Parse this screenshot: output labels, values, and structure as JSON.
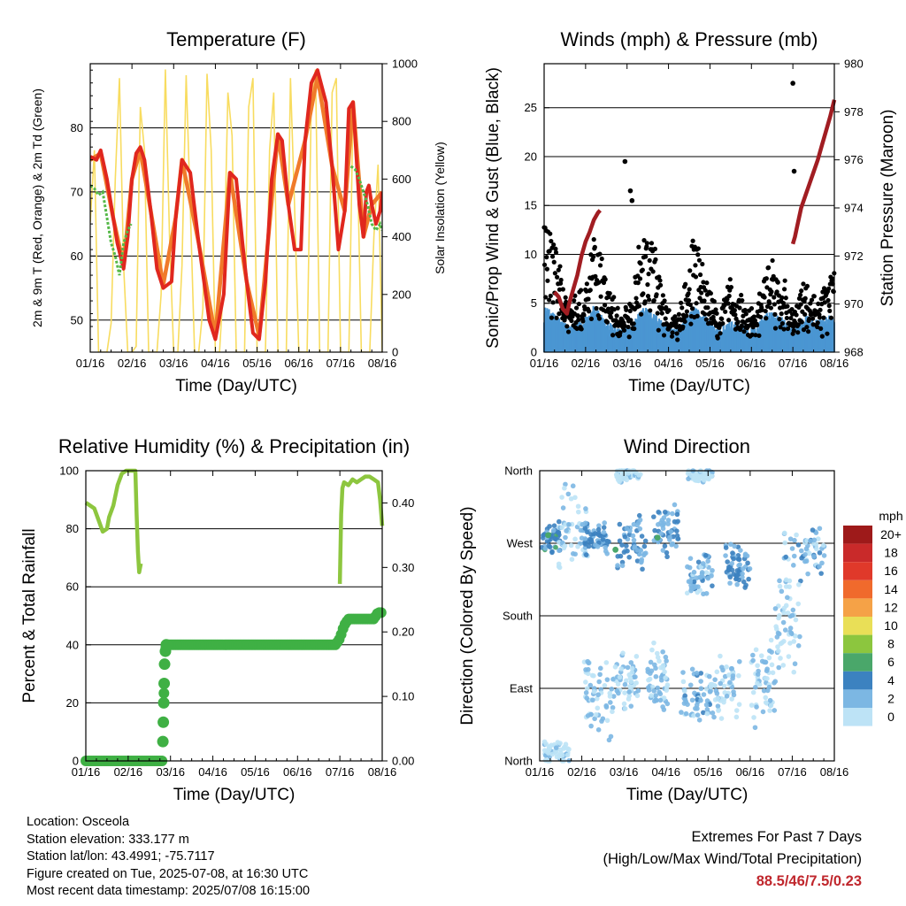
{
  "colors": {
    "temp_2m": "#e0271e",
    "temp_9m": "#f07a2a",
    "dewpoint": "#55b848",
    "solar": "#f8dc60",
    "wind": "#4b96d2",
    "gust": "#000000",
    "pressure": "#a11d22",
    "rh": "#8dc63f",
    "precip": "#3fb044",
    "extremes": "#c0272d"
  },
  "footer": {
    "location": "Location: Osceola",
    "elevation": "Station elevation: 333.177 m",
    "latlon": "Station lat/lon: 43.4991; -75.7117",
    "created": "Figure created on Tue, 2025-07-08, at 16:30 UTC",
    "recent": "Most recent data timestamp: 2025/07/08 16:15:00",
    "extremes_title": "Extremes For Past 7 Days",
    "extremes_subtitle": "(High/Low/Max Wind/Total Precipitation)",
    "extremes_value": "88.5/46/7.5/0.23"
  },
  "chart_data": [
    {
      "id": "temperature",
      "type": "line",
      "title": "Temperature (F)",
      "xlabel": "Time (Day/UTC)",
      "ylabel": "2m & 9m T (Red, Orange) & 2m Td (Green)",
      "y2label": "Solar Insolation (Yellow)",
      "x_ticks": [
        "01/16",
        "02/16",
        "03/16",
        "04/16",
        "05/16",
        "06/16",
        "07/16",
        "08/16"
      ],
      "xlim": [
        0,
        7
      ],
      "ylim": [
        45,
        90
      ],
      "y_ticks": [
        50,
        60,
        70,
        80
      ],
      "y2lim": [
        0,
        1000
      ],
      "y2_ticks": [
        0,
        200,
        400,
        600,
        800,
        1000
      ],
      "grid": true,
      "series": [
        {
          "role": "temp_2m",
          "x": [
            0,
            0.15,
            0.25,
            0.4,
            0.55,
            0.65,
            0.8,
            0.9,
            1.0,
            1.1,
            1.2,
            1.3,
            1.45,
            1.6,
            1.75,
            1.95,
            2.05,
            2.2,
            2.4,
            2.6,
            2.75,
            2.85,
            3.0,
            3.2,
            3.35,
            3.5,
            3.65,
            3.75,
            3.9,
            4.05,
            4.2,
            4.35,
            4.5,
            4.6,
            4.75,
            4.9,
            5.05,
            5.15,
            5.3,
            5.45,
            5.65,
            5.8,
            5.95,
            6.1,
            6.2,
            6.3,
            6.45,
            6.55,
            6.62,
            6.68,
            6.75,
            6.85,
            6.95,
            7.0
          ],
          "y": [
            75.5,
            75,
            76.5,
            72,
            66,
            62,
            58,
            63,
            72,
            76,
            77,
            75,
            67,
            58,
            55,
            56,
            66,
            75,
            73,
            62,
            55,
            50,
            47,
            54,
            73,
            72,
            62,
            56,
            48,
            47,
            56,
            72,
            79,
            78,
            68,
            61,
            61,
            78,
            87,
            89,
            84,
            74,
            61,
            67,
            83,
            84,
            68,
            63,
            70,
            71,
            68,
            65,
            67,
            70
          ]
        },
        {
          "role": "temp_9m",
          "x": [
            0,
            0.25,
            0.55,
            0.8,
            1.0,
            1.2,
            1.45,
            1.75,
            2.05,
            2.2,
            2.6,
            3.0,
            3.35,
            3.75,
            4.05,
            4.5,
            4.75,
            5.15,
            5.45,
            5.8,
            6.1,
            6.3,
            6.55,
            6.75,
            7.0
          ],
          "y": [
            75,
            76,
            66,
            58.5,
            72,
            76.5,
            67,
            55.5,
            66,
            75,
            62,
            47.5,
            73,
            56,
            47.5,
            79,
            68,
            78,
            88,
            74,
            67,
            84,
            63,
            68,
            70
          ]
        },
        {
          "role": "dewpoint",
          "x": [
            0,
            0.1,
            0.2,
            0.3,
            0.4,
            0.5,
            0.6,
            0.7,
            0.8,
            0.9,
            0.98,
            6.25,
            6.35,
            6.45,
            6.55,
            6.65,
            6.75,
            6.85,
            6.95,
            7.0
          ],
          "y": [
            71,
            70.5,
            69.5,
            70,
            66,
            62,
            60,
            57,
            62,
            64,
            65,
            74,
            73.5,
            72,
            70,
            68,
            65,
            64,
            65,
            64
          ]
        },
        {
          "role": "solar",
          "x": [
            0,
            0.1,
            0.2,
            0.3,
            0.4,
            0.5,
            0.6,
            0.7,
            0.8,
            0.9,
            1.0,
            1.1,
            1.2,
            1.3,
            1.4,
            1.5,
            1.6,
            1.7,
            1.8,
            1.9,
            2.0,
            2.1,
            2.2,
            2.3,
            2.4,
            2.5,
            2.6,
            2.7,
            2.8,
            2.9,
            3.0,
            3.1,
            3.2,
            3.3,
            3.4,
            3.5,
            3.6,
            3.7,
            3.8,
            3.9,
            4.0,
            4.1,
            4.2,
            4.3,
            4.4,
            4.5,
            4.6,
            4.7,
            4.8,
            4.9,
            5.0,
            5.1,
            5.2,
            5.3,
            5.4,
            5.5,
            5.6,
            5.7,
            5.8,
            5.9,
            6.0,
            6.1,
            6.2,
            6.3,
            6.4,
            6.5,
            6.6,
            6.7,
            6.8,
            6.9,
            7.0
          ],
          "y": [
            450,
            700,
            0,
            0,
            0,
            100,
            600,
            950,
            300,
            0,
            0,
            20,
            850,
            700,
            0,
            0,
            0,
            200,
            980,
            400,
            0,
            0,
            300,
            960,
            500,
            0,
            0,
            150,
            965,
            700,
            0,
            0,
            250,
            900,
            750,
            0,
            0,
            0,
            850,
            950,
            0,
            0,
            0,
            700,
            900,
            0,
            0,
            0,
            950,
            500,
            0,
            0,
            0,
            880,
            980,
            0,
            0,
            0,
            900,
            950,
            0,
            0,
            0,
            850,
            700,
            0,
            0,
            0,
            400,
            650,
            0
          ]
        }
      ]
    },
    {
      "id": "winds",
      "type": "scatter",
      "title": "Winds (mph) & Pressure (mb)",
      "xlabel": "Time (Day/UTC)",
      "ylabel": "Sonic/Prop Wind & Gust (Blue, Black)",
      "y2label": "Station Pressure (Maroon)",
      "x_ticks": [
        "01/16",
        "02/16",
        "03/16",
        "04/16",
        "05/16",
        "06/16",
        "07/16",
        "08/16"
      ],
      "xlim": [
        0,
        7
      ],
      "ylim": [
        0,
        29.5
      ],
      "y_ticks": [
        0,
        5,
        10,
        15,
        20,
        25
      ],
      "y2lim": [
        968,
        980
      ],
      "y2_ticks": [
        968,
        970,
        972,
        974,
        976,
        978,
        980
      ],
      "grid": true,
      "gust_envelope": {
        "x": [
          0,
          0.3,
          0.6,
          0.9,
          1.2,
          1.5,
          1.8,
          2.1,
          2.4,
          2.7,
          3.0,
          3.3,
          3.6,
          3.9,
          4.2,
          4.5,
          4.8,
          5.1,
          5.4,
          5.7,
          6.0,
          6.3,
          6.6,
          6.9,
          7.0
        ],
        "y": [
          11,
          8,
          3,
          4,
          9,
          5,
          2,
          3,
          10,
          7,
          2,
          3,
          9,
          6,
          2,
          5,
          3,
          2,
          7,
          6,
          2,
          5,
          3,
          6,
          7
        ]
      },
      "gust_outliers": {
        "x": [
          6.0,
          6.03,
          1.95,
          2.08,
          2.12
        ],
        "y": [
          27.5,
          18.5,
          19.5,
          16.5,
          15.5
        ]
      },
      "wind_envelope": {
        "x": [
          0,
          0.3,
          0.6,
          0.9,
          1.2,
          1.5,
          1.8,
          2.1,
          2.4,
          2.7,
          3.0,
          3.3,
          3.6,
          3.9,
          4.2,
          4.5,
          4.8,
          5.1,
          5.4,
          5.7,
          6.0,
          6.3,
          6.6,
          6.9,
          7.0
        ],
        "y": [
          3,
          2,
          1,
          1.5,
          3,
          1.5,
          0.8,
          1,
          3,
          2,
          0.7,
          1,
          3,
          2,
          0.6,
          1.5,
          1,
          0.8,
          2.5,
          2,
          0.8,
          2,
          1.5,
          2,
          2
        ]
      },
      "pressure": {
        "x": [
          0.25,
          0.35,
          0.45,
          0.55,
          0.6,
          0.7,
          0.8,
          0.9,
          1.0,
          1.1,
          1.2,
          1.3,
          1.35,
          6.0,
          6.05,
          6.1,
          6.2,
          6.3,
          6.4,
          6.5,
          6.6,
          6.7,
          6.8,
          6.9,
          7.0
        ],
        "y": [
          970.5,
          970.3,
          969.8,
          969.6,
          970.0,
          970.6,
          971.2,
          972.0,
          972.6,
          973.0,
          973.5,
          973.8,
          973.9,
          972.5,
          972.8,
          973.2,
          974.0,
          974.5,
          975.0,
          975.5,
          976.0,
          976.6,
          977.2,
          977.8,
          978.5
        ]
      }
    },
    {
      "id": "humidity",
      "type": "line",
      "title": "Relative Humidity (%) & Precipitation (in)",
      "xlabel": "Time (Day/UTC)",
      "ylabel": "Percent & Total Rainfall",
      "x_ticks": [
        "01/16",
        "02/16",
        "03/16",
        "04/16",
        "05/16",
        "06/16",
        "07/16",
        "08/16"
      ],
      "xlim": [
        0,
        7
      ],
      "ylim": [
        0,
        100
      ],
      "y_ticks": [
        0,
        20,
        40,
        60,
        80,
        100
      ],
      "y2lim": [
        0,
        0.45
      ],
      "y2_ticks": [
        "0.00",
        "0.10",
        "0.20",
        "0.30",
        "0.40"
      ],
      "grid": true,
      "series": [
        {
          "role": "rh",
          "segments": [
            {
              "x": [
                0,
                0.1,
                0.2,
                0.3,
                0.4,
                0.5,
                0.55,
                0.65,
                0.75,
                0.85,
                0.95,
                1.0,
                1.03,
                1.07,
                1.1,
                1.13,
                1.17,
                1.2,
                1.23,
                1.26,
                1.3
              ],
              "y": [
                89,
                88,
                87,
                83,
                79,
                80,
                84,
                88,
                95,
                99,
                100,
                100,
                100,
                100,
                100,
                100,
                100,
                85,
                72,
                65,
                68
              ]
            },
            {
              "x": [
                6.0,
                6.03,
                6.06,
                6.1,
                6.2,
                6.3,
                6.4,
                6.5,
                6.6,
                6.7,
                6.8,
                6.9,
                6.95,
                7.0
              ],
              "y": [
                61,
                85,
                94,
                96,
                95,
                97,
                96,
                97,
                98,
                98,
                97,
                96,
                90,
                81
              ]
            }
          ]
        },
        {
          "role": "precip",
          "x": [
            0,
            0.5,
            1.0,
            1.5,
            1.8,
            1.82,
            1.83,
            1.84,
            1.85,
            1.86,
            1.88,
            1.9,
            2.5,
            3.0,
            4.0,
            5.0,
            5.9,
            6.0,
            6.05,
            6.1,
            6.2,
            6.4,
            6.6,
            6.8,
            6.9,
            7.0
          ],
          "y": [
            0,
            0,
            0,
            0,
            0,
            0.03,
            0.06,
            0.09,
            0.12,
            0.15,
            0.17,
            0.18,
            0.18,
            0.18,
            0.18,
            0.18,
            0.18,
            0.19,
            0.2,
            0.21,
            0.22,
            0.22,
            0.22,
            0.22,
            0.23,
            0.23
          ]
        }
      ]
    },
    {
      "id": "direction",
      "type": "scatter",
      "title": "Wind Direction",
      "xlabel": "Time (Day/UTC)",
      "ylabel": "Direction (Colored By Speed)",
      "x_ticks": [
        "01/16",
        "02/16",
        "03/16",
        "04/16",
        "05/16",
        "06/16",
        "07/16",
        "08/16"
      ],
      "xlim": [
        0,
        7
      ],
      "ylim": [
        0,
        360
      ],
      "y_ticks": [
        0,
        90,
        180,
        270,
        360
      ],
      "y_tick_labels": [
        "North",
        "East",
        "South",
        "West",
        "North"
      ],
      "grid": true,
      "legend": {
        "title": "mph",
        "labels": [
          "20+",
          "18",
          "16",
          "14",
          "12",
          "10",
          "8",
          "6",
          "4",
          "2",
          "0"
        ],
        "colors": [
          "#9e1a1a",
          "#c92a2a",
          "#e0392a",
          "#f06a2c",
          "#f5a247",
          "#e9df57",
          "#8cc63e",
          "#4aa76a",
          "#3c82c0",
          "#7cb7e3",
          "#bde3f6"
        ]
      },
      "clusters": [
        {
          "x": 0.2,
          "dir": 275,
          "dx": 0.3,
          "dd": 25,
          "speed": 4
        },
        {
          "x": 0.8,
          "dir": 290,
          "dx": 0.35,
          "dd": 60,
          "speed": 1
        },
        {
          "x": 1.35,
          "dir": 275,
          "dx": 0.3,
          "dd": 25,
          "speed": 3
        },
        {
          "x": 1.4,
          "dir": 80,
          "dx": 0.35,
          "dd": 60,
          "speed": 1
        },
        {
          "x": 2.2,
          "dir": 270,
          "dx": 0.35,
          "dd": 40,
          "speed": 3
        },
        {
          "x": 2.0,
          "dir": 100,
          "dx": 0.35,
          "dd": 40,
          "speed": 1
        },
        {
          "x": 3.0,
          "dir": 285,
          "dx": 0.3,
          "dd": 35,
          "speed": 3
        },
        {
          "x": 2.8,
          "dir": 100,
          "dx": 0.25,
          "dd": 50,
          "speed": 1
        },
        {
          "x": 3.8,
          "dir": 230,
          "dx": 0.3,
          "dd": 30,
          "speed": 2
        },
        {
          "x": 3.7,
          "dir": 80,
          "dx": 0.35,
          "dd": 40,
          "speed": 2
        },
        {
          "x": 4.7,
          "dir": 240,
          "dx": 0.3,
          "dd": 35,
          "speed": 3
        },
        {
          "x": 4.4,
          "dir": 90,
          "dx": 0.35,
          "dd": 45,
          "speed": 1
        },
        {
          "x": 5.3,
          "dir": 100,
          "dx": 0.3,
          "dd": 60,
          "speed": 1
        },
        {
          "x": 6.3,
          "dir": 260,
          "dx": 0.5,
          "dd": 40,
          "speed": 2
        },
        {
          "x": 5.9,
          "dir": 170,
          "dx": 0.3,
          "dd": 70,
          "speed": 1
        },
        {
          "x": 0.4,
          "dir": 10,
          "dx": 0.3,
          "dd": 15,
          "speed": 0
        },
        {
          "x": 2.1,
          "dir": 355,
          "dx": 0.3,
          "dd": 10,
          "speed": 0
        },
        {
          "x": 3.8,
          "dir": 355,
          "dx": 0.3,
          "dd": 10,
          "speed": 0
        }
      ]
    }
  ]
}
